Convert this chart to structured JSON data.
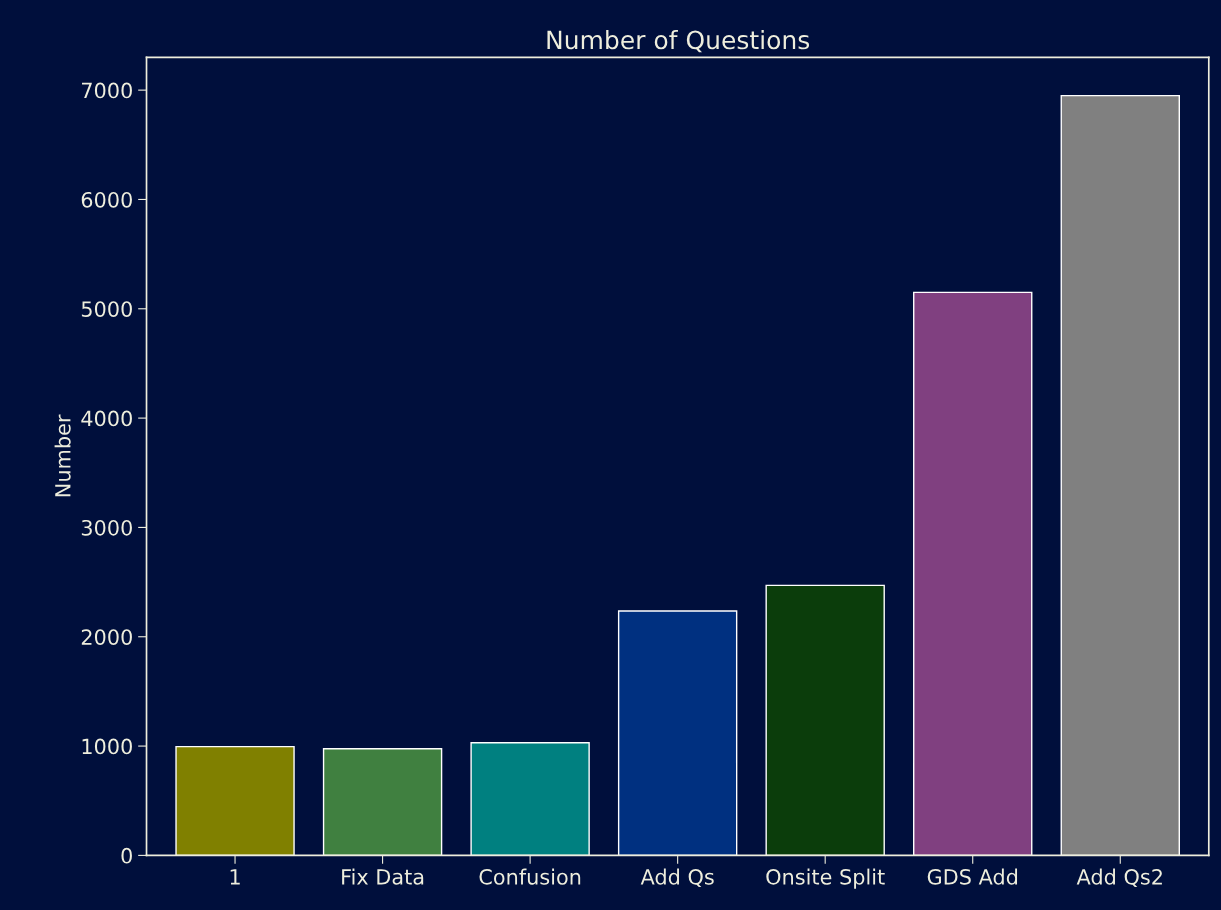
{
  "chart_data": {
    "type": "bar",
    "title": "Number of Questions",
    "ylabel": "Number",
    "categories": [
      "1",
      "Fix Data",
      "Confusion",
      "Add Qs",
      "Onsite Split",
      "GDS Add",
      "Add Qs2"
    ],
    "values": [
      995,
      975,
      1030,
      2235,
      2470,
      5150,
      6950
    ],
    "colors": [
      "#808000",
      "#408040",
      "#008080",
      "#003080",
      "#0b3d0b",
      "#804080",
      "#808080"
    ],
    "ylim": [
      0,
      7300
    ],
    "yticks": [
      0,
      1000,
      2000,
      3000,
      4000,
      5000,
      6000,
      7000
    ],
    "grid": false,
    "legend": false
  }
}
